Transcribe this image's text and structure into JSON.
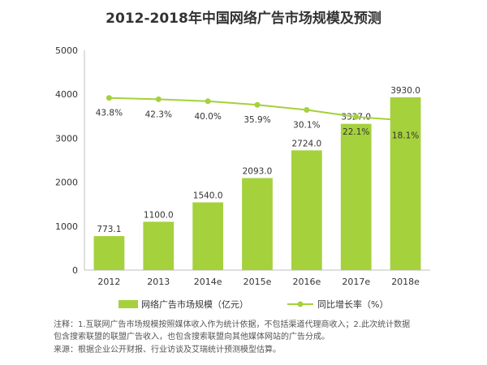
{
  "chart_data": {
    "type": "bar",
    "title": "2012-2018年中国网络广告市场规模及预测",
    "categories": [
      "2012",
      "2013",
      "2014e",
      "2015e",
      "2016e",
      "2017e",
      "2018e"
    ],
    "series": [
      {
        "name": "网络广告市场规模（亿元）",
        "type": "bar",
        "axis": "left",
        "values": [
          773.1,
          1100.0,
          1540.0,
          2093.0,
          2724.0,
          3327.0,
          3930.0
        ],
        "labels": [
          "773.1",
          "1100.0",
          "1540.0",
          "2093.0",
          "2724.0",
          "3327.0",
          "3930.0"
        ],
        "color": "#a5d13c"
      },
      {
        "name": "同比增长率（%）",
        "type": "line",
        "axis": "secondary",
        "values": [
          43.8,
          42.3,
          40.0,
          35.9,
          30.1,
          22.1,
          18.1
        ],
        "labels": [
          "43.8%",
          "42.3%",
          "40.0%",
          "35.9%",
          "30.1%",
          "22.1%",
          "18.1%"
        ],
        "color": "#a5d13c"
      }
    ],
    "yaxis": {
      "min": 0,
      "max": 5000,
      "ticks": [
        "0",
        "1000",
        "2000",
        "3000",
        "4000",
        "5000"
      ]
    },
    "grid": false,
    "legend": "bottom"
  },
  "notes": {
    "line1": "注释：1.互联网广告市场规模按照媒体收入作为统计依据，不包括渠道代理商收入；2.此次统计数据",
    "line2": "包含搜索联盟的联盟广告收入，也包含搜索联盟向其他媒体网站的广告分成。",
    "source": "来源：根据企业公开财报、行业访谈及艾瑞统计预测模型估算。"
  }
}
